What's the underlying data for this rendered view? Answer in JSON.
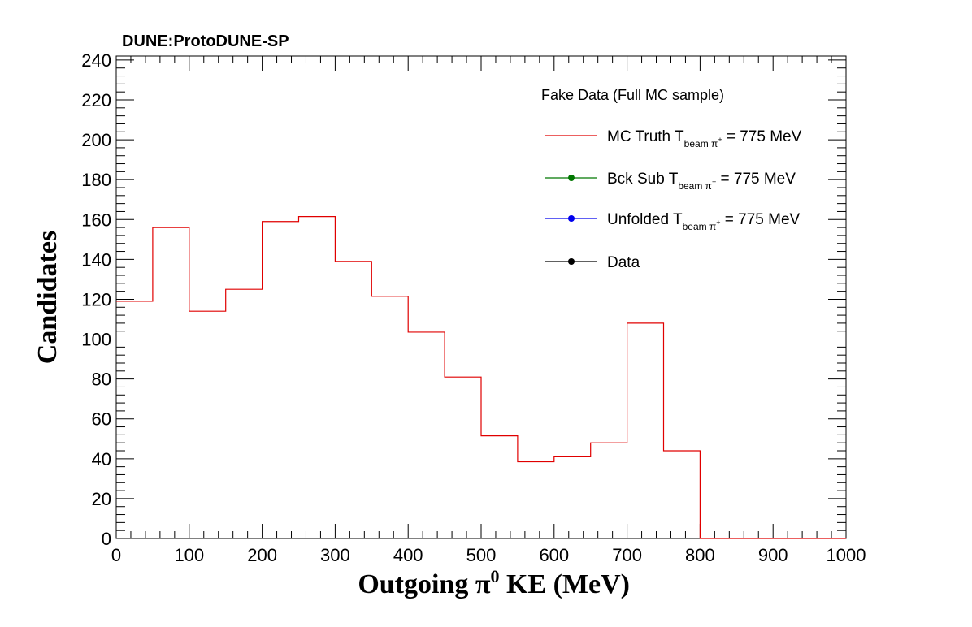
{
  "chart_data": {
    "type": "histogram",
    "title": "DUNE:ProtoDUNE-SP",
    "xlabel_main": "Outgoing  π",
    "xlabel_sup": "0",
    "xlabel_tail": " KE (MeV)",
    "ylabel": "Candidates",
    "xlim": [
      0,
      1000
    ],
    "ylim": [
      0,
      242
    ],
    "x_ticks": [
      "0",
      "100",
      "200",
      "300",
      "400",
      "500",
      "600",
      "700",
      "800",
      "900",
      "1000"
    ],
    "y_ticks": [
      "0",
      "20",
      "40",
      "60",
      "80",
      "100",
      "120",
      "140",
      "160",
      "180",
      "200",
      "220",
      "240"
    ],
    "bin_edges": [
      0,
      50,
      100,
      150,
      200,
      250,
      300,
      350,
      400,
      450,
      500,
      550,
      600,
      650,
      700,
      750,
      800,
      850,
      900,
      950,
      1000
    ],
    "series": [
      {
        "name": "MC Truth",
        "color": "#e00000",
        "values": [
          119,
          156,
          114,
          125,
          159,
          161.5,
          139,
          121.5,
          103.5,
          81,
          51.5,
          38.5,
          41,
          48,
          108,
          44,
          0,
          0,
          0,
          0
        ]
      }
    ],
    "legend": {
      "position": "top-right",
      "header": "Fake Data (Full MC sample)",
      "entries": [
        {
          "prefix": "MC Truth T",
          "sub": "beam π",
          "supsign": "+",
          "suffix": " = 775 MeV",
          "color": "#e00000",
          "marker": false
        },
        {
          "prefix": "Bck Sub T",
          "sub": "beam π",
          "supsign": "+",
          "suffix": " = 775 MeV",
          "color": "#007700",
          "marker": true
        },
        {
          "prefix": "Unfolded T",
          "sub": "beam π",
          "supsign": "+",
          "suffix": " = 775 MeV",
          "color": "#0000ee",
          "marker": true
        },
        {
          "prefix": "Data",
          "sub": "",
          "supsign": "",
          "suffix": "",
          "color": "#000000",
          "marker": true
        }
      ]
    }
  }
}
